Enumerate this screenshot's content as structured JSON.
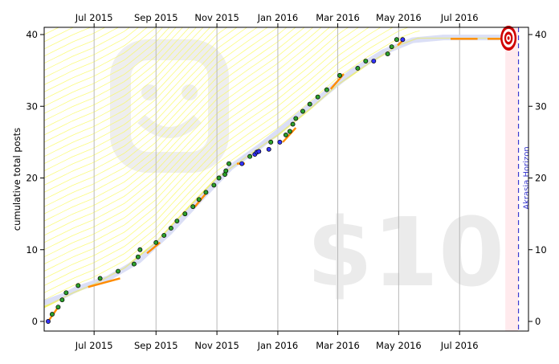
{
  "chart_data": {
    "type": "scatter",
    "ylabel": "cumulative total posts",
    "ylim": [
      0,
      40
    ],
    "y_ticks": [
      0,
      10,
      20,
      30,
      40
    ],
    "xlim": [
      "2015-05-12",
      "2016-09-08"
    ],
    "x_ticks": [
      {
        "date": "2015-07-01",
        "label": "Jul 2015"
      },
      {
        "date": "2015-09-01",
        "label": "Sep 2015"
      },
      {
        "date": "2015-11-01",
        "label": "Nov 2015"
      },
      {
        "date": "2016-01-01",
        "label": "Jan 2016"
      },
      {
        "date": "2016-03-01",
        "label": "Mar 2016"
      },
      {
        "date": "2016-05-01",
        "label": "May 2016"
      },
      {
        "date": "2016-07-01",
        "label": "Jul 2016"
      }
    ],
    "grid": "vertical",
    "watermark": "$10",
    "horizon": {
      "date": "2016-08-29",
      "label": "Akrasia Horizon"
    },
    "goal": {
      "date": "2016-08-19",
      "value": 39.5
    },
    "datapoints": [
      {
        "x": "2015-05-16",
        "y": 0,
        "c": "blue"
      },
      {
        "x": "2015-05-20",
        "y": 1,
        "c": "green"
      },
      {
        "x": "2015-05-26",
        "y": 2,
        "c": "green"
      },
      {
        "x": "2015-05-30",
        "y": 3,
        "c": "green"
      },
      {
        "x": "2015-06-03",
        "y": 4,
        "c": "green"
      },
      {
        "x": "2015-06-15",
        "y": 5,
        "c": "green"
      },
      {
        "x": "2015-07-07",
        "y": 6,
        "c": "green"
      },
      {
        "x": "2015-07-25",
        "y": 7,
        "c": "green"
      },
      {
        "x": "2015-08-10",
        "y": 8,
        "c": "green"
      },
      {
        "x": "2015-08-14",
        "y": 9,
        "c": "green"
      },
      {
        "x": "2015-08-16",
        "y": 10,
        "c": "green"
      },
      {
        "x": "2015-09-01",
        "y": 11,
        "c": "green"
      },
      {
        "x": "2015-09-09",
        "y": 12,
        "c": "green"
      },
      {
        "x": "2015-09-16",
        "y": 13,
        "c": "green"
      },
      {
        "x": "2015-09-22",
        "y": 14,
        "c": "green"
      },
      {
        "x": "2015-09-30",
        "y": 15,
        "c": "green"
      },
      {
        "x": "2015-10-08",
        "y": 16,
        "c": "green"
      },
      {
        "x": "2015-10-14",
        "y": 17,
        "c": "green"
      },
      {
        "x": "2015-10-21",
        "y": 18,
        "c": "green"
      },
      {
        "x": "2015-10-29",
        "y": 19,
        "c": "green"
      },
      {
        "x": "2015-11-03",
        "y": 20,
        "c": "green"
      },
      {
        "x": "2015-11-09",
        "y": 20.5,
        "c": "green"
      },
      {
        "x": "2015-11-10",
        "y": 21,
        "c": "green"
      },
      {
        "x": "2015-11-13",
        "y": 22,
        "c": "green"
      },
      {
        "x": "2015-11-26",
        "y": 22,
        "c": "blue"
      },
      {
        "x": "2015-12-04",
        "y": 23,
        "c": "green"
      },
      {
        "x": "2015-12-09",
        "y": 23.3,
        "c": "blue"
      },
      {
        "x": "2015-12-11",
        "y": 23.6,
        "c": "blue"
      },
      {
        "x": "2015-12-13",
        "y": 23.7,
        "c": "blue"
      },
      {
        "x": "2015-12-23",
        "y": 24,
        "c": "blue"
      },
      {
        "x": "2015-12-25",
        "y": 25,
        "c": "green"
      },
      {
        "x": "2016-01-03",
        "y": 25,
        "c": "blue"
      },
      {
        "x": "2016-01-09",
        "y": 26,
        "c": "green"
      },
      {
        "x": "2016-01-13",
        "y": 26.5,
        "c": "green"
      },
      {
        "x": "2016-01-16",
        "y": 27.5,
        "c": "green"
      },
      {
        "x": "2016-01-19",
        "y": 28.3,
        "c": "green"
      },
      {
        "x": "2016-01-26",
        "y": 29.3,
        "c": "green"
      },
      {
        "x": "2016-02-02",
        "y": 30.3,
        "c": "green"
      },
      {
        "x": "2016-02-10",
        "y": 31.3,
        "c": "green"
      },
      {
        "x": "2016-02-19",
        "y": 32.3,
        "c": "green"
      },
      {
        "x": "2016-03-03",
        "y": 34.3,
        "c": "green"
      },
      {
        "x": "2016-03-21",
        "y": 35.3,
        "c": "green"
      },
      {
        "x": "2016-03-29",
        "y": 36.3,
        "c": "green"
      },
      {
        "x": "2016-04-06",
        "y": 36.3,
        "c": "blue"
      },
      {
        "x": "2016-04-20",
        "y": 37.3,
        "c": "green"
      },
      {
        "x": "2016-04-24",
        "y": 38.3,
        "c": "green"
      },
      {
        "x": "2016-04-29",
        "y": 39.3,
        "c": "green"
      },
      {
        "x": "2016-05-05",
        "y": 39.3,
        "c": "blue"
      }
    ],
    "flat_segments": [
      {
        "x1": "2015-05-16",
        "x2": "2015-05-26",
        "y1": 0,
        "y2": 2
      },
      {
        "x1": "2015-06-25",
        "x2": "2015-07-27",
        "y1": 4.8,
        "y2": 6
      },
      {
        "x1": "2015-08-23",
        "x2": "2015-09-05",
        "y1": 9.5,
        "y2": 11
      },
      {
        "x1": "2015-10-10",
        "x2": "2015-10-22",
        "y1": 16,
        "y2": 18
      },
      {
        "x1": "2015-11-21",
        "x2": "2015-11-29",
        "y1": 22,
        "y2": 22
      },
      {
        "x1": "2016-01-06",
        "x2": "2016-01-19",
        "y1": 25,
        "y2": 27
      },
      {
        "x1": "2016-02-23",
        "x2": "2016-03-07",
        "y1": 32.4,
        "y2": 34.5
      },
      {
        "x1": "2016-04-30",
        "x2": "2016-05-07",
        "y1": 38.5,
        "y2": 39.4
      },
      {
        "x1": "2016-06-22",
        "x2": "2016-07-19",
        "y1": 39.4,
        "y2": 39.4
      },
      {
        "x1": "2016-07-29",
        "x2": "2016-08-15",
        "y1": 39.4,
        "y2": 39.4
      }
    ],
    "trend": [
      [
        "2015-05-12",
        2.6
      ],
      [
        "2015-06-01",
        3.6
      ],
      [
        "2015-06-15",
        4.6
      ],
      [
        "2015-07-15",
        6.0
      ],
      [
        "2015-08-15",
        8.5
      ],
      [
        "2015-09-15",
        12.5
      ],
      [
        "2015-10-15",
        17.0
      ],
      [
        "2015-11-15",
        21.5
      ],
      [
        "2015-12-15",
        24.5
      ],
      [
        "2016-01-15",
        28.0
      ],
      [
        "2016-02-15",
        31.5
      ],
      [
        "2016-03-15",
        34.8
      ],
      [
        "2016-04-15",
        37.5
      ],
      [
        "2016-05-15",
        39.2
      ],
      [
        "2016-06-15",
        39.6
      ],
      [
        "2016-07-15",
        39.6
      ],
      [
        "2016-08-19",
        39.6
      ]
    ],
    "road": [
      [
        "2015-05-12",
        2.0
      ],
      [
        "2015-06-10",
        4.0
      ],
      [
        "2015-07-01",
        5.2
      ],
      [
        "2015-08-01",
        7.5
      ],
      [
        "2015-09-01",
        11.0
      ],
      [
        "2015-10-01",
        15.5
      ],
      [
        "2015-11-01",
        20.0
      ],
      [
        "2015-12-01",
        23.0
      ],
      [
        "2016-01-01",
        26.0
      ],
      [
        "2016-02-01",
        29.5
      ],
      [
        "2016-03-01",
        33.0
      ],
      [
        "2016-04-01",
        36.0
      ],
      [
        "2016-05-01",
        38.5
      ],
      [
        "2016-05-20",
        39.5
      ],
      [
        "2016-08-19",
        39.5
      ]
    ],
    "colors": {
      "point_green": "#2ca02c",
      "point_blue": "#3333ff",
      "flat_segment": "#ff8c00",
      "trend": "#d7dcf5",
      "yellow_lanes": "#fafa55",
      "goal_red": "#d00000",
      "horizon": "#3a3ad0"
    }
  }
}
